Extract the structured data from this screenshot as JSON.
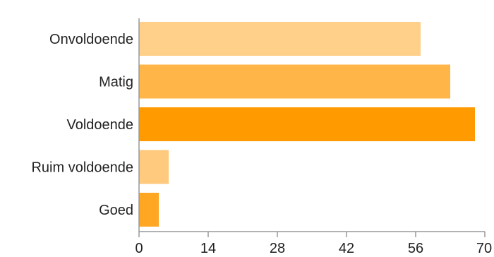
{
  "chart_data": {
    "type": "bar",
    "orientation": "horizontal",
    "title": "",
    "xlabel": "",
    "ylabel": "",
    "categories": [
      "Onvoldoende",
      "Matig",
      "Voldoende",
      "Ruim voldoende",
      "Goed"
    ],
    "values": [
      57,
      63,
      68,
      6,
      4
    ],
    "bar_colors": [
      "#FFD08A",
      "#FFB547",
      "#FF9B00",
      "#FFCA7E",
      "#FFA623"
    ],
    "xlim": [
      0,
      70
    ],
    "xticks": [
      "0",
      "14",
      "28",
      "42",
      "56",
      "70"
    ],
    "grid": false,
    "legend": "none"
  }
}
